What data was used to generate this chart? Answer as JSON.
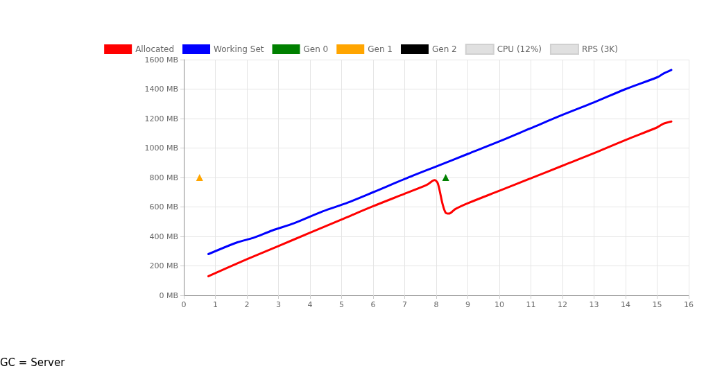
{
  "chart_data": {
    "type": "line",
    "annotations": [
      "GC = Server"
    ],
    "xlim": [
      0,
      16
    ],
    "xticks": [
      0,
      1,
      2,
      3,
      4,
      5,
      6,
      7,
      8,
      9,
      10,
      11,
      12,
      13,
      14,
      15,
      16
    ],
    "ylim": [
      0,
      1600
    ],
    "yticks": [
      {
        "value": 0,
        "label": "0 MB"
      },
      {
        "value": 200,
        "label": "200 MB"
      },
      {
        "value": 400,
        "label": "400 MB"
      },
      {
        "value": 600,
        "label": "600 MB"
      },
      {
        "value": 800,
        "label": "800 MB"
      },
      {
        "value": 1000,
        "label": "1000 MB"
      },
      {
        "value": 1200,
        "label": "1200 MB"
      },
      {
        "value": 1400,
        "label": "1400 MB"
      },
      {
        "value": 1600,
        "label": "1600 MB"
      }
    ],
    "grid": true,
    "legend": "top",
    "marker": "none",
    "line_style": "solid",
    "series": [
      {
        "name": "Allocated",
        "color": "#ff0000",
        "x": [
          0.78,
          2,
          3,
          4,
          5,
          6,
          7,
          7.7,
          7.95,
          8.05,
          8.2,
          8.3,
          8.4,
          8.6,
          9,
          10,
          11,
          12,
          13,
          14,
          15,
          15.2,
          15.45
        ],
        "values": [
          130,
          245,
          335,
          425,
          515,
          605,
          690,
          750,
          782,
          760,
          620,
          560,
          555,
          585,
          625,
          710,
          795,
          880,
          965,
          1055,
          1140,
          1165,
          1180
        ]
      },
      {
        "name": "Working Set",
        "color": "#0000ff",
        "x": [
          0.78,
          1.7,
          2.2,
          2.8,
          3.5,
          4.4,
          5.2,
          6,
          7,
          8,
          9,
          10,
          11,
          12,
          13,
          14,
          15,
          15.2,
          15.45
        ],
        "values": [
          280,
          360,
          390,
          440,
          490,
          570,
          630,
          700,
          790,
          875,
          960,
          1045,
          1135,
          1225,
          1310,
          1400,
          1480,
          1505,
          1530
        ]
      },
      {
        "name": "Gen 0",
        "type": "scatter",
        "marker": "triangle",
        "color": "#008000",
        "x": [
          8.3
        ],
        "values": [
          800
        ]
      },
      {
        "name": "Gen 1",
        "type": "scatter",
        "marker": "triangle",
        "color": "#ffa500",
        "x": [
          0.5
        ],
        "values": [
          800
        ]
      },
      {
        "name": "Gen 2",
        "type": "scatter",
        "marker": "triangle",
        "color": "#000000"
      },
      {
        "name": "CPU (12%)",
        "color": "#e0e0e0"
      },
      {
        "name": "RPS (3K)",
        "color": "#e0e0e0"
      }
    ]
  }
}
